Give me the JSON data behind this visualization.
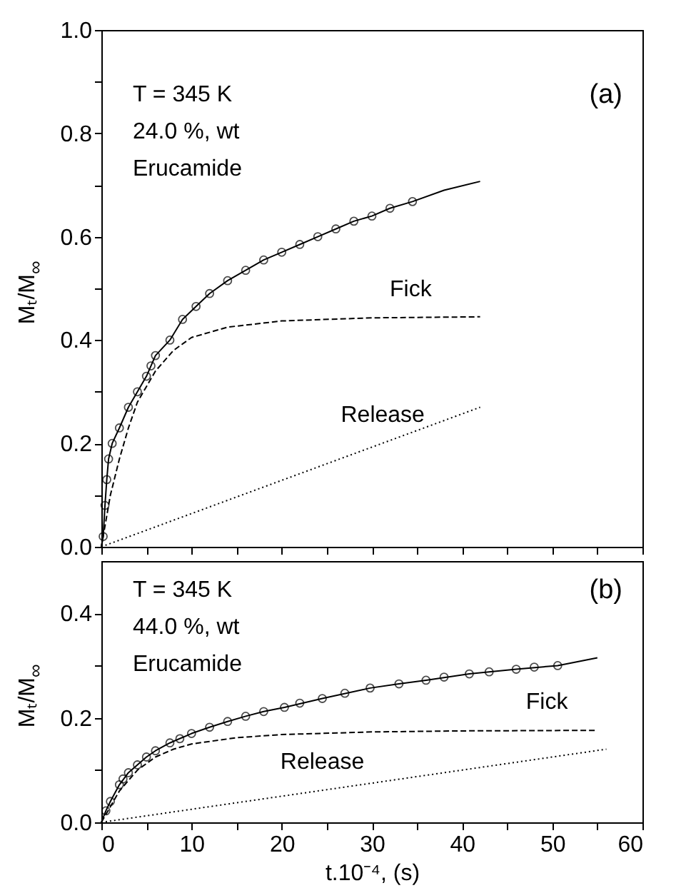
{
  "chart_data": [
    {
      "type": "scatter",
      "ylabel": "Mₜ/M$_{∞}$",
      "xlim": [
        0,
        60
      ],
      "ylim": [
        0,
        1.0
      ],
      "tick_labels": "y",
      "grid": false,
      "xticks": [
        {
          "value": 0,
          "label": null
        },
        {
          "value": 5,
          "label": null
        },
        {
          "value": 10,
          "label": null
        },
        {
          "value": 15,
          "label": null
        },
        {
          "value": 20,
          "label": null
        },
        {
          "value": 25,
          "label": null
        },
        {
          "value": 30,
          "label": null
        },
        {
          "value": 35,
          "label": null
        },
        {
          "value": 40,
          "label": null
        },
        {
          "value": 45,
          "label": null
        },
        {
          "value": 50,
          "label": null
        },
        {
          "value": 55,
          "label": null
        },
        {
          "value": 60,
          "label": null
        }
      ],
      "yticks": [
        {
          "value": 0,
          "label": "0.0"
        },
        {
          "value": 0.1,
          "label": null
        },
        {
          "value": 0.2,
          "label": "0.2"
        },
        {
          "value": 0.3,
          "label": null
        },
        {
          "value": 0.4,
          "label": "0.4"
        },
        {
          "value": 0.5,
          "label": null
        },
        {
          "value": 0.6,
          "label": "0.6"
        },
        {
          "value": 0.7,
          "label": null
        },
        {
          "value": 0.8,
          "label": "0.8"
        },
        {
          "value": 0.9,
          "label": null
        },
        {
          "value": 1.0,
          "label": "1.0"
        }
      ],
      "series": [
        {
          "marker": "circle",
          "color": "#000000",
          "x": [
            0.2,
            0.4,
            0.6,
            0.8,
            1.2,
            2,
            3,
            4,
            5,
            5.5,
            6,
            7.6,
            9,
            10.5,
            12,
            14,
            16,
            18,
            20,
            22,
            24,
            26,
            28,
            30,
            32,
            34.5
          ],
          "values": [
            0.02,
            0.08,
            0.13,
            0.17,
            0.2,
            0.23,
            0.27,
            0.3,
            0.33,
            0.35,
            0.37,
            0.4,
            0.44,
            0.465,
            0.49,
            0.515,
            0.535,
            0.555,
            0.57,
            0.585,
            0.6,
            0.615,
            0.63,
            0.64,
            0.655,
            0.668
          ]
        },
        {
          "type": "line",
          "line_style": "solid",
          "color": "#000000",
          "x": [
            0,
            0.2,
            0.4,
            0.6,
            0.8,
            1.2,
            2,
            3,
            4,
            5,
            6,
            7.6,
            9,
            10.5,
            12,
            14,
            16,
            18,
            20,
            22,
            24,
            26,
            28,
            30,
            32,
            34.5,
            38,
            42
          ],
          "values": [
            0,
            0.02,
            0.08,
            0.13,
            0.17,
            0.2,
            0.23,
            0.27,
            0.3,
            0.33,
            0.37,
            0.4,
            0.44,
            0.465,
            0.49,
            0.515,
            0.535,
            0.555,
            0.57,
            0.585,
            0.6,
            0.615,
            0.63,
            0.64,
            0.655,
            0.668,
            0.69,
            0.707
          ]
        },
        {
          "type": "line",
          "line_style": "dashed",
          "color": "#000000",
          "x": [
            0,
            1,
            2,
            3,
            4,
            6,
            8,
            10,
            14,
            20,
            30,
            42
          ],
          "values": [
            0,
            0.1,
            0.17,
            0.23,
            0.28,
            0.34,
            0.38,
            0.405,
            0.425,
            0.437,
            0.443,
            0.445
          ]
        },
        {
          "type": "line",
          "line_style": "dotted",
          "color": "#000000",
          "x": [
            0,
            42
          ],
          "values": [
            0,
            0.27
          ]
        }
      ],
      "annotations": [
        {
          "text": "Fick",
          "x": 34.3,
          "y": 0.444
        },
        {
          "text": "Release",
          "x": 31.2,
          "y": 0.2
        },
        "T = 345 K",
        "24.0 %, wt",
        "Erucamide",
        "(a)"
      ]
    },
    {
      "type": "scatter",
      "xlabel": "t.10⁻⁴, (s)",
      "ylabel": "Mₜ/M$_{∞}$",
      "xlim": [
        0,
        60
      ],
      "ylim": [
        0,
        0.5
      ],
      "grid": false,
      "xticks": [
        0,
        {
          "value": 5,
          "label": null
        },
        10,
        {
          "value": 15,
          "label": null
        },
        20,
        {
          "value": 25,
          "label": null
        },
        30,
        {
          "value": 35,
          "label": null
        },
        40,
        {
          "value": 45,
          "label": null
        },
        50,
        {
          "value": 55,
          "label": null
        },
        60
      ],
      "yticks": [
        {
          "value": 0,
          "label": "0.0"
        },
        {
          "value": 0.1,
          "label": null
        },
        {
          "value": 0.2,
          "label": "0.2"
        },
        {
          "value": 0.3,
          "label": null
        },
        {
          "value": 0.4,
          "label": "0.4"
        }
      ],
      "series": [
        {
          "marker": "circle",
          "color": "#000000",
          "x": [
            0.5,
            1,
            2,
            2.4,
            3,
            4,
            5,
            6,
            7.6,
            8.7,
            10,
            12,
            14,
            16,
            18,
            20.3,
            22,
            24.5,
            27,
            29.8,
            33,
            36,
            38,
            40.8,
            43,
            46,
            48,
            50.6
          ],
          "values": [
            0.022,
            0.04,
            0.072,
            0.083,
            0.095,
            0.11,
            0.125,
            0.137,
            0.152,
            0.16,
            0.17,
            0.182,
            0.193,
            0.203,
            0.212,
            0.22,
            0.228,
            0.237,
            0.247,
            0.257,
            0.265,
            0.272,
            0.278,
            0.284,
            0.288,
            0.293,
            0.297,
            0.3
          ]
        },
        {
          "type": "line",
          "line_style": "solid",
          "color": "#000000",
          "x": [
            0,
            0.5,
            1,
            2,
            3,
            4,
            5,
            6,
            7.6,
            10,
            12,
            14,
            16,
            18,
            20.3,
            24.5,
            29.8,
            33,
            36,
            40.8,
            46,
            50.6,
            55
          ],
          "values": [
            0,
            0.022,
            0.04,
            0.072,
            0.095,
            0.11,
            0.125,
            0.137,
            0.152,
            0.17,
            0.182,
            0.193,
            0.203,
            0.212,
            0.22,
            0.237,
            0.257,
            0.265,
            0.272,
            0.284,
            0.293,
            0.3,
            0.315
          ]
        },
        {
          "type": "line",
          "line_style": "dashed",
          "color": "#000000",
          "x": [
            0,
            2,
            4,
            6,
            8,
            10,
            15,
            20,
            30,
            40,
            55
          ],
          "values": [
            0,
            0.06,
            0.1,
            0.125,
            0.14,
            0.15,
            0.162,
            0.168,
            0.173,
            0.175,
            0.176
          ]
        },
        {
          "type": "line",
          "line_style": "dotted",
          "color": "#000000",
          "x": [
            0,
            56
          ],
          "values": [
            0,
            0.14
          ]
        }
      ],
      "annotations": [
        {
          "text": "Fick",
          "x": 49.4,
          "y": 0.176
        },
        {
          "text": "Release",
          "x": 24.5,
          "y": 0.061
        },
        "T = 345 K",
        "44.0 %, wt",
        "Erucamide",
        "(b)"
      ]
    }
  ]
}
